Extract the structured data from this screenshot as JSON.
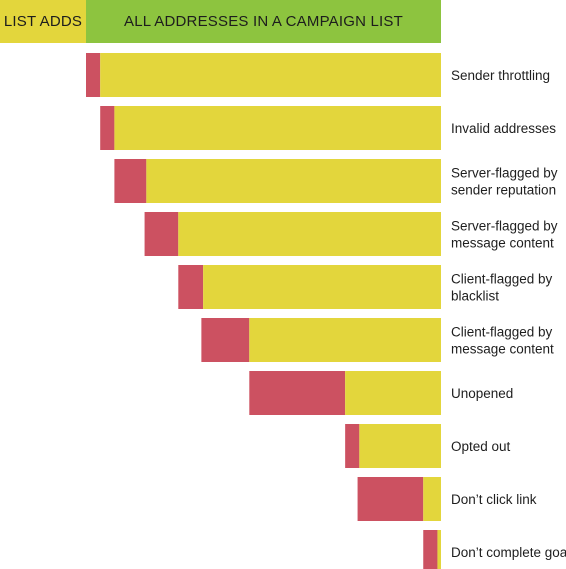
{
  "header": {
    "left_label": "LIST ADDS",
    "right_label": "ALL ADDRESSES IN A CAMPAIGN LIST"
  },
  "colors": {
    "header_left": "#e3d63c",
    "header_right": "#8dc43f",
    "kept": "#e3d63c",
    "lost": "#cc5161"
  },
  "chart_data": {
    "type": "bar",
    "categories": [
      [
        "Sender throttling"
      ],
      [
        "Invalid addresses"
      ],
      [
        "Server-flagged by",
        "sender reputation"
      ],
      [
        "Server-flagged by",
        "message content"
      ],
      [
        "Client-flagged by",
        "blacklist"
      ],
      [
        "Client-flagged by",
        "message content"
      ],
      [
        "Unopened"
      ],
      [
        "Opted out"
      ],
      [
        "Don’t click link"
      ],
      [
        "Don’t complete goal"
      ]
    ],
    "series": [
      {
        "values": [
          4,
          4,
          9,
          9.5,
          7,
          13.5,
          27,
          4,
          18.5,
          4
        ]
      },
      {
        "values": [
          96,
          92,
          83,
          74,
          67,
          54,
          27,
          23,
          5,
          1
        ]
      }
    ]
  }
}
